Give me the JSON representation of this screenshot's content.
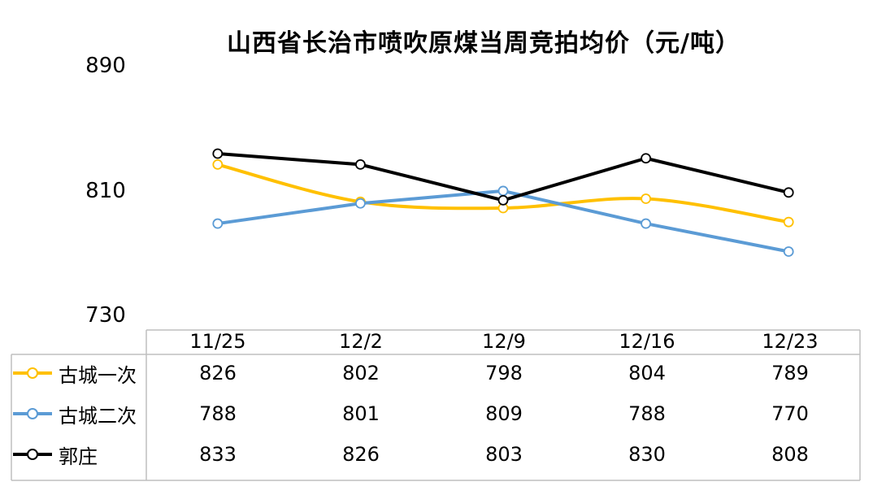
{
  "chart_data": {
    "type": "line",
    "title": "山西省长治市喷吹原煤当周竞拍均价（元/吨）",
    "categories": [
      "11/25",
      "12/2",
      "12/9",
      "12/16",
      "12/23"
    ],
    "yticks": [
      "890",
      "810",
      "730"
    ],
    "ylim": [
      730,
      890
    ],
    "grid": false,
    "legend": "table-left",
    "series": [
      {
        "name": "古城一次",
        "color": "#FFC000",
        "smooth": true,
        "values": [
          826,
          802,
          798,
          804,
          789
        ]
      },
      {
        "name": "古城二次",
        "color": "#5B9BD5",
        "smooth": false,
        "values": [
          788,
          801,
          809,
          788,
          770
        ]
      },
      {
        "name": "郭庄",
        "color": "#000000",
        "smooth": false,
        "values": [
          833,
          826,
          803,
          830,
          808
        ]
      }
    ]
  }
}
